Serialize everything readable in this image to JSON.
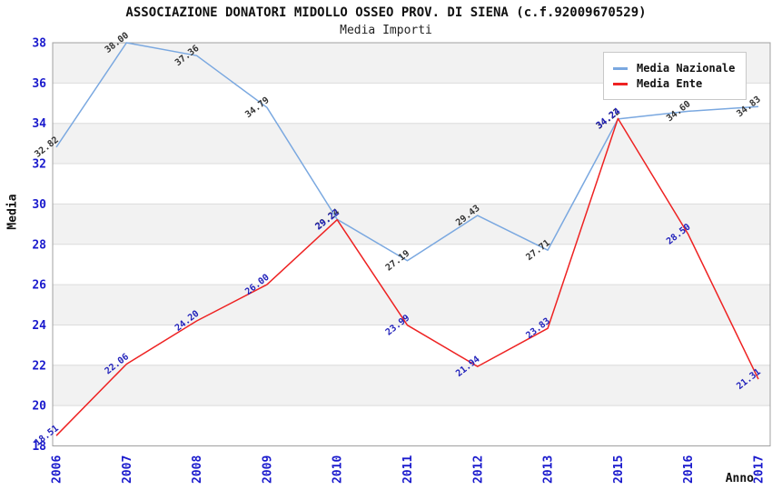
{
  "header": {
    "title": "ASSOCIAZIONE DONATORI MIDOLLO OSSEO PROV. DI SIENA (c.f.92009670529)",
    "subtitle": "Media Importi"
  },
  "axes": {
    "y_title": "Media",
    "x_title": "Anno",
    "y_ticks": [
      18,
      20,
      22,
      24,
      26,
      28,
      30,
      32,
      34,
      36,
      38
    ],
    "tick_label_color": "#1a1acd"
  },
  "legend": {
    "items": [
      {
        "label": "Media Nazionale",
        "color": "#7aa8e0"
      },
      {
        "label": "Media Ente",
        "color": "#ee2222"
      }
    ]
  },
  "colors": {
    "band_gray": "#f2f2f2",
    "band_white": "#ffffff",
    "gridline": "#dcdcdc",
    "plot_border": "#a0a0a0",
    "national_line": "#7aa8e0",
    "ente_line": "#ee2222",
    "national_value_label": "#333333",
    "ente_value_label": "#2222bb"
  },
  "chart_data": {
    "type": "line",
    "title": "ASSOCIAZIONE DONATORI MIDOLLO OSSEO PROV. DI SIENA (c.f.92009670529)",
    "subtitle": "Media Importi",
    "xlabel": "Anno",
    "ylabel": "Media",
    "ylim": [
      18,
      38
    ],
    "ytick_step": 2,
    "grid": "alternating-horizontal-bands",
    "legend_position": "top-right",
    "categories": [
      "2006",
      "2007",
      "2008",
      "2009",
      "2010",
      "2011",
      "2012",
      "2013",
      "2015",
      "2016",
      "2017"
    ],
    "series": [
      {
        "name": "Media Nazionale",
        "color": "#7aa8e0",
        "label_color": "#333333",
        "values": [
          32.82,
          38.0,
          37.36,
          34.79,
          29.24,
          27.19,
          29.43,
          27.71,
          34.22,
          34.6,
          34.83
        ]
      },
      {
        "name": "Media Ente",
        "color": "#ee2222",
        "label_color": "#2222bb",
        "values": [
          18.51,
          22.06,
          24.2,
          26.0,
          29.22,
          23.99,
          21.94,
          23.83,
          34.24,
          28.5,
          21.31
        ]
      }
    ]
  }
}
